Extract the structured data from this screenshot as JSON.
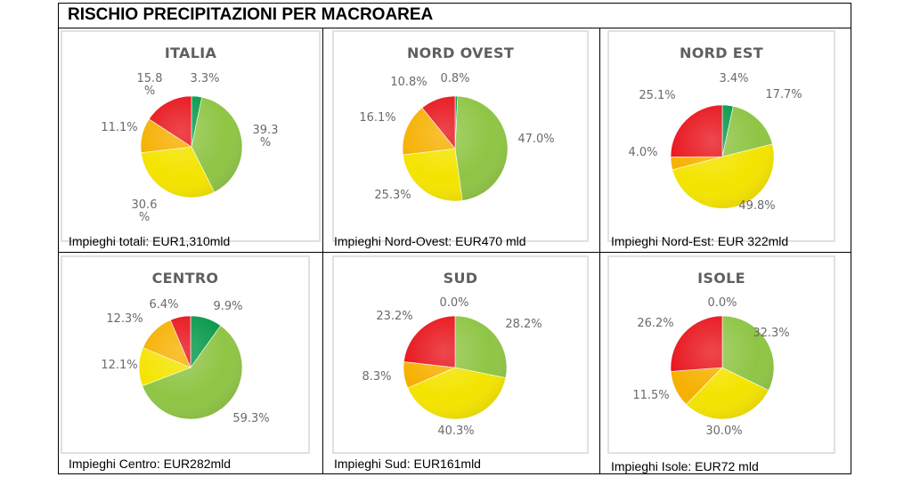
{
  "title": "RISCHIO PRECIPITAZIONI PER MACROAREA",
  "colors": {
    "green_dark": "#0a9a4e",
    "green_light": "#8fc545",
    "yellow": "#f4e400",
    "orange": "#f6b000",
    "red": "#e8141c"
  },
  "chart_data": [
    {
      "type": "pie",
      "title": "ITALIA",
      "caption": "Impieghi totali: EUR1,310mld",
      "slices": [
        {
          "color": "green_dark",
          "value": 3.3,
          "label": "3.3%"
        },
        {
          "color": "green_light",
          "value": 39.3,
          "label": "39.3 %"
        },
        {
          "color": "yellow",
          "value": 30.6,
          "label": "30.6 %"
        },
        {
          "color": "orange",
          "value": 11.1,
          "label": "11.1%"
        },
        {
          "color": "red",
          "value": 15.8,
          "label": "15.8 %"
        }
      ]
    },
    {
      "type": "pie",
      "title": "NORD OVEST",
      "caption": "Impieghi Nord-Ovest: EUR470 mld",
      "slices": [
        {
          "color": "green_dark",
          "value": 0.8,
          "label": "0.8%"
        },
        {
          "color": "green_light",
          "value": 47.0,
          "label": "47.0%"
        },
        {
          "color": "yellow",
          "value": 25.3,
          "label": "25.3%"
        },
        {
          "color": "orange",
          "value": 16.1,
          "label": "16.1%"
        },
        {
          "color": "red",
          "value": 10.8,
          "label": "10.8%"
        }
      ]
    },
    {
      "type": "pie",
      "title": "NORD EST",
      "caption": "Impieghi Nord-Est: EUR 322mld",
      "slices": [
        {
          "color": "green_dark",
          "value": 3.4,
          "label": "3.4%"
        },
        {
          "color": "green_light",
          "value": 17.7,
          "label": "17.7%"
        },
        {
          "color": "yellow",
          "value": 49.8,
          "label": "49.8%"
        },
        {
          "color": "orange",
          "value": 4.0,
          "label": "4.0%"
        },
        {
          "color": "red",
          "value": 25.1,
          "label": "25.1%"
        }
      ]
    },
    {
      "type": "pie",
      "title": "CENTRO",
      "caption": "Impieghi Centro: EUR282mld",
      "slices": [
        {
          "color": "green_dark",
          "value": 9.9,
          "label": "9.9%"
        },
        {
          "color": "green_light",
          "value": 59.3,
          "label": "59.3%"
        },
        {
          "color": "yellow",
          "value": 12.1,
          "label": "12.1%"
        },
        {
          "color": "orange",
          "value": 12.3,
          "label": "12.3%"
        },
        {
          "color": "red",
          "value": 6.4,
          "label": "6.4%"
        }
      ]
    },
    {
      "type": "pie",
      "title": "SUD",
      "caption": "Impieghi Sud: EUR161mld",
      "slices": [
        {
          "color": "green_dark",
          "value": 0.0,
          "label": "0.0%"
        },
        {
          "color": "green_light",
          "value": 28.2,
          "label": "28.2%"
        },
        {
          "color": "yellow",
          "value": 40.3,
          "label": "40.3%"
        },
        {
          "color": "orange",
          "value": 8.3,
          "label": "8.3%"
        },
        {
          "color": "red",
          "value": 23.2,
          "label": "23.2%"
        }
      ]
    },
    {
      "type": "pie",
      "title": "ISOLE",
      "caption": "Impieghi Isole: EUR72 mld",
      "slices": [
        {
          "color": "green_dark",
          "value": 0.0,
          "label": "0.0%"
        },
        {
          "color": "green_light",
          "value": 32.3,
          "label": "32.3%"
        },
        {
          "color": "yellow",
          "value": 30.0,
          "label": "30.0%"
        },
        {
          "color": "orange",
          "value": 11.5,
          "label": "11.5%"
        },
        {
          "color": "red",
          "value": 26.2,
          "label": "26.2%"
        }
      ]
    }
  ]
}
